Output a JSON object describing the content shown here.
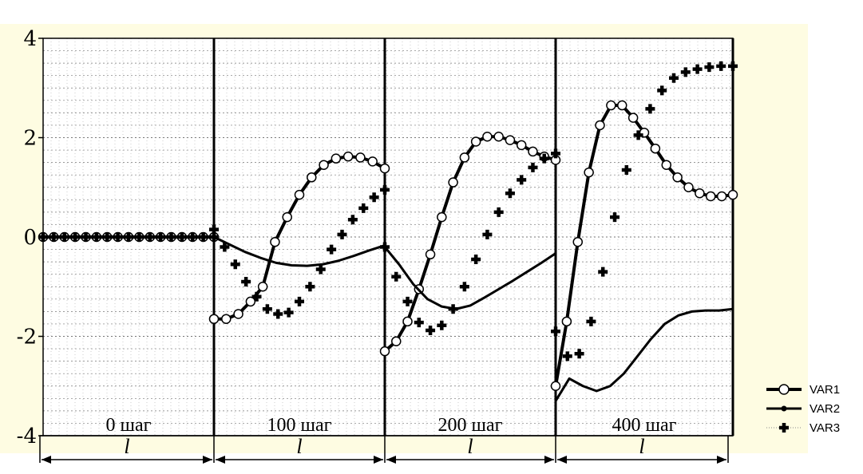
{
  "chart_data": {
    "type": "line",
    "ylim": [
      -4,
      4
    ],
    "y_ticks": [
      "-4",
      "-2",
      "0",
      "2",
      "4"
    ],
    "grid": true,
    "legend_position": "bottom-right",
    "panels": [
      {
        "label": "0 шаг",
        "length_label": "l"
      },
      {
        "label": "100 шаг",
        "length_label": "l"
      },
      {
        "label": "200 шаг",
        "length_label": "l"
      },
      {
        "label": "400 шаг",
        "length_label": "l"
      }
    ],
    "series": [
      {
        "name": "VAR1",
        "marker": "circle",
        "panels": [
          [
            0,
            0,
            0,
            0,
            0,
            0,
            0,
            0,
            0,
            0,
            0,
            0,
            0,
            0,
            0,
            0,
            0
          ],
          [
            -1.65,
            -1.65,
            -1.55,
            -1.3,
            -1.0,
            -0.1,
            0.4,
            0.85,
            1.2,
            1.45,
            1.58,
            1.62,
            1.6,
            1.52,
            1.38
          ],
          [
            -2.3,
            -2.1,
            -1.7,
            -1.05,
            -0.35,
            0.4,
            1.1,
            1.6,
            1.92,
            2.02,
            2.02,
            1.95,
            1.85,
            1.72,
            1.62,
            1.55
          ],
          [
            -3.0,
            -1.7,
            -0.1,
            1.3,
            2.25,
            2.65,
            2.65,
            2.4,
            2.1,
            1.78,
            1.45,
            1.2,
            1.0,
            0.88,
            0.82,
            0.82,
            0.85
          ]
        ]
      },
      {
        "name": "VAR2",
        "marker": "none",
        "panels": [
          [
            0,
            0,
            0,
            0,
            0,
            0,
            0,
            0,
            0,
            0,
            0,
            0,
            0,
            0,
            0,
            0,
            0
          ],
          [
            0,
            -0.15,
            -0.3,
            -0.42,
            -0.52,
            -0.57,
            -0.58,
            -0.55,
            -0.48,
            -0.38,
            -0.27,
            -0.17
          ],
          [
            -0.2,
            -0.55,
            -0.95,
            -1.25,
            -1.4,
            -1.45,
            -1.38,
            -1.22,
            -1.05,
            -0.88,
            -0.7,
            -0.52,
            -0.33
          ],
          [
            -3.3,
            -2.85,
            -3.0,
            -3.1,
            -3.0,
            -2.75,
            -2.4,
            -2.05,
            -1.75,
            -1.58,
            -1.5,
            -1.48,
            -1.48,
            -1.45
          ]
        ]
      },
      {
        "name": "VAR3",
        "marker": "plus",
        "panels": [
          [
            0,
            0,
            0,
            0,
            0,
            0,
            0,
            0,
            0,
            0,
            0,
            0,
            0,
            0,
            0,
            0,
            0
          ],
          [
            0.15,
            -0.2,
            -0.55,
            -0.9,
            -1.2,
            -1.45,
            -1.55,
            -1.52,
            -1.3,
            -1.0,
            -0.65,
            -0.25,
            0.05,
            0.35,
            0.58,
            0.8,
            0.95
          ],
          [
            -0.2,
            -0.8,
            -1.3,
            -1.72,
            -1.88,
            -1.78,
            -1.45,
            -1.0,
            -0.45,
            0.05,
            0.5,
            0.88,
            1.15,
            1.4,
            1.58,
            1.68
          ],
          [
            -1.9,
            -2.4,
            -2.35,
            -1.7,
            -0.7,
            0.4,
            1.35,
            2.05,
            2.58,
            2.95,
            3.2,
            3.32,
            3.38,
            3.42,
            3.44,
            3.44
          ]
        ]
      }
    ]
  }
}
